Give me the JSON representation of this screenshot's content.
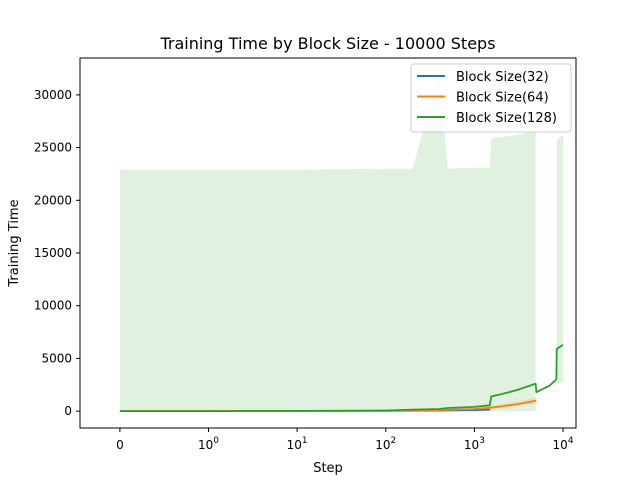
{
  "chart_data": {
    "type": "line",
    "title": "Training Time by Block Size - 10000 Steps",
    "xlabel": "Step",
    "ylabel": "Training Time",
    "xscale": "symlog",
    "xlim": [
      -0.45,
      14000
    ],
    "ylim": [
      -1600,
      33500
    ],
    "x_ticks": [
      {
        "value": 0,
        "base": "0",
        "exp": ""
      },
      {
        "value": 1,
        "base": "10",
        "exp": "0"
      },
      {
        "value": 10,
        "base": "10",
        "exp": "1"
      },
      {
        "value": 100,
        "base": "10",
        "exp": "2"
      },
      {
        "value": 1000,
        "base": "10",
        "exp": "3"
      },
      {
        "value": 10000,
        "base": "10",
        "exp": "4"
      }
    ],
    "y_ticks": [
      0,
      5000,
      10000,
      15000,
      20000,
      25000,
      30000
    ],
    "y_tick_labels": [
      "0",
      "5000",
      "10000",
      "15000",
      "20000",
      "25000",
      "30000"
    ],
    "grid": false,
    "legend_position": "top-right",
    "series": [
      {
        "name": "Block Size(32)",
        "color": "#1f77b4",
        "x": [
          0,
          1,
          10,
          100,
          200,
          500,
          1000,
          1500
        ],
        "y": [
          0,
          2,
          10,
          25,
          40,
          60,
          100,
          150
        ],
        "band_low": [
          0,
          0,
          5,
          15,
          25,
          40,
          70,
          100
        ],
        "band_high": [
          0,
          5,
          15,
          35,
          55,
          90,
          150,
          200
        ]
      },
      {
        "name": "Block Size(64)",
        "color": "#ff7f0e",
        "x": [
          0,
          1,
          10,
          100,
          200,
          400,
          1000,
          1500,
          2000,
          3000,
          5000
        ],
        "y": [
          0,
          3,
          12,
          30,
          60,
          110,
          200,
          320,
          450,
          650,
          1000
        ],
        "band_low": [
          0,
          1,
          6,
          18,
          40,
          80,
          140,
          230,
          330,
          480,
          700
        ],
        "band_high": [
          0,
          6,
          20,
          45,
          90,
          160,
          280,
          470,
          650,
          900,
          1300
        ]
      },
      {
        "name": "Block Size(128)",
        "color": "#2ca02c",
        "x": [
          0,
          1,
          10,
          100,
          200,
          400,
          500,
          1000,
          1490,
          1550,
          2000,
          3000,
          4900,
          5000,
          7000,
          8400,
          8500,
          10000
        ],
        "y": [
          0,
          5,
          20,
          60,
          150,
          200,
          300,
          400,
          550,
          1400,
          1600,
          2000,
          2600,
          1800,
          2400,
          3000,
          5900,
          6300
        ],
        "band_low": [
          0,
          0,
          0,
          0,
          0,
          0,
          0,
          0,
          0,
          0,
          0,
          0,
          0,
          0,
          0,
          2000,
          2500,
          2800
        ],
        "band_high": [
          22900,
          22900,
          22900,
          23000,
          23000,
          32000,
          23000,
          23100,
          23100,
          25900,
          26000,
          26200,
          26600,
          null,
          null,
          null,
          25700,
          26200
        ]
      }
    ]
  }
}
